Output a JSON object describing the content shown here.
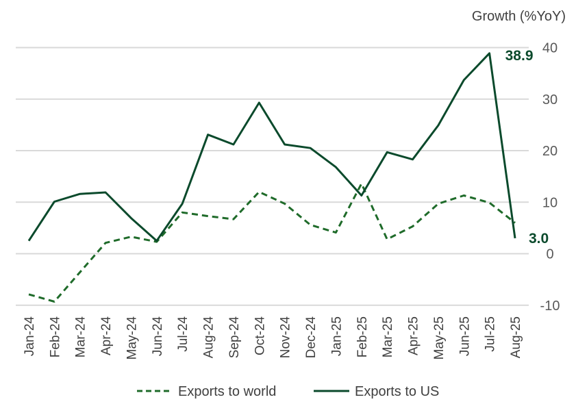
{
  "chart_data": {
    "type": "line",
    "ylabel": "Growth (%YoY)",
    "ylim": [
      -10,
      40
    ],
    "yticks": [
      40,
      30,
      20,
      10,
      0,
      -10
    ],
    "grid": true,
    "legend_position": "bottom",
    "categories": [
      "Jan-24",
      "Feb-24",
      "Mar-24",
      "Apr-24",
      "May-24",
      "Jun-24",
      "Jul-24",
      "Aug-24",
      "Sep-24",
      "Oct-24",
      "Nov-24",
      "Dec-24",
      "Jan-25",
      "Feb-25",
      "Mar-25",
      "Apr-25",
      "May-25",
      "Jun-25",
      "Jul-25",
      "Aug-25"
    ],
    "series": [
      {
        "name": "Exports to world",
        "style": "dashed",
        "color": "#1f6b2a",
        "values": [
          -7.9,
          -9.3,
          -3.6,
          2.1,
          3.3,
          2.3,
          8.0,
          7.3,
          6.7,
          12.0,
          9.7,
          5.6,
          4.1,
          13.6,
          2.8,
          5.3,
          9.7,
          11.3,
          9.9,
          6.0
        ]
      },
      {
        "name": "Exports to US",
        "style": "solid",
        "color": "#0b4a2c",
        "values": [
          2.5,
          10.1,
          11.6,
          11.9,
          6.9,
          2.5,
          9.7,
          23.1,
          21.2,
          29.3,
          21.2,
          20.5,
          16.8,
          11.3,
          19.7,
          18.3,
          24.9,
          33.7,
          38.9,
          3.0
        ]
      }
    ],
    "annotations": [
      {
        "text": "38.9",
        "category": "Jul-25"
      },
      {
        "text": "3.0",
        "category": "Aug-25"
      }
    ]
  }
}
